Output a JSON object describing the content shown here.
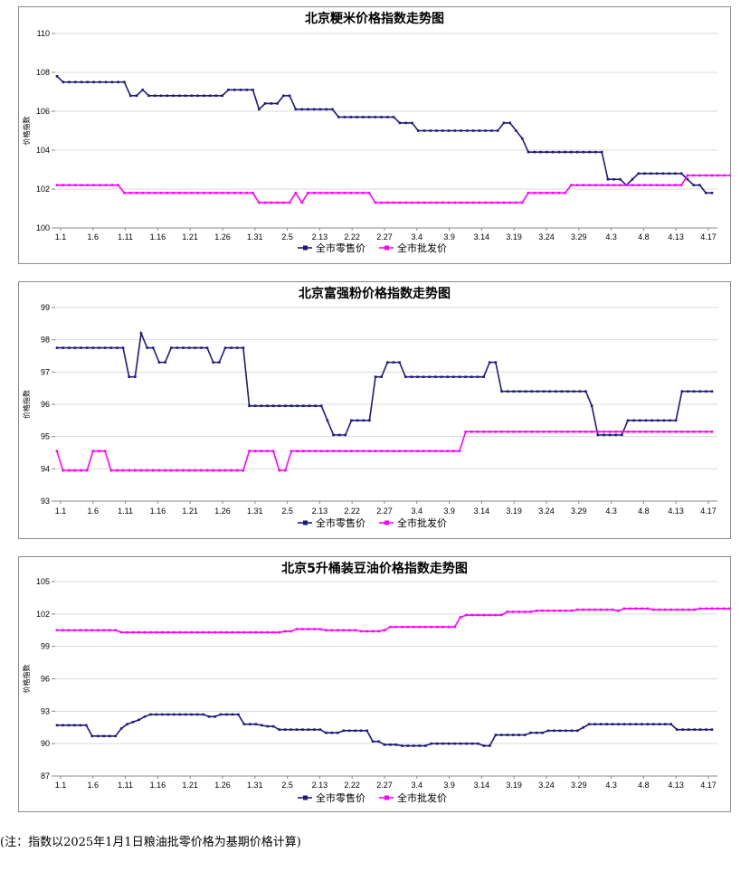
{
  "footnote": "(注：指数以2025年1月1日粮油批零价格为基期价格计算)",
  "chart_data": [
    {
      "type": "line",
      "title": "北京粳米价格指数走势图",
      "ylabel": "价格指数",
      "ylim": [
        100,
        110
      ],
      "yticks": [
        100,
        102,
        104,
        106,
        108,
        110
      ],
      "grid": true,
      "legend_position": "bottom",
      "x_tick_labels": [
        "1.1",
        "1.6",
        "1.11",
        "1.16",
        "1.21",
        "1.26",
        "1.31",
        "2.5",
        "2.13",
        "2.22",
        "2.27",
        "3.4",
        "3.9",
        "3.14",
        "3.19",
        "3.24",
        "3.29",
        "4.3",
        "4.8",
        "4.13",
        "4.17"
      ],
      "series": [
        {
          "name": "全市零售价",
          "color": "#1f1a7a",
          "values": [
            107.8,
            107.5,
            107.5,
            107.5,
            107.5,
            107.5,
            107.5,
            107.5,
            107.5,
            107.5,
            107.5,
            107.5,
            106.8,
            106.8,
            107.1,
            106.8,
            106.8,
            106.8,
            106.8,
            106.8,
            106.8,
            106.8,
            106.8,
            106.8,
            106.8,
            106.8,
            106.8,
            106.8,
            107.1,
            107.1,
            107.1,
            107.1,
            107.1,
            106.1,
            106.4,
            106.4,
            106.4,
            106.8,
            106.8,
            106.1,
            106.1,
            106.1,
            106.1,
            106.1,
            106.1,
            106.1,
            105.7,
            105.7,
            105.7,
            105.7,
            105.7,
            105.7,
            105.7,
            105.7,
            105.7,
            105.7,
            105.4,
            105.4,
            105.4,
            105.0,
            105.0,
            105.0,
            105.0,
            105.0,
            105.0,
            105.0,
            105.0,
            105.0,
            105.0,
            105.0,
            105.0,
            105.0,
            105.0,
            105.4,
            105.4,
            105.0,
            104.6,
            103.9,
            103.9,
            103.9,
            103.9,
            103.9,
            103.9,
            103.9,
            103.9,
            103.9,
            103.9,
            103.9,
            103.9,
            103.9,
            102.5,
            102.5,
            102.5,
            102.2,
            102.5,
            102.8,
            102.8,
            102.8,
            102.8,
            102.8,
            102.8,
            102.8,
            102.8,
            102.5,
            102.2,
            102.2,
            101.8,
            101.8
          ]
        },
        {
          "name": "全市批发价",
          "color": "#ff00ff",
          "values": [
            102.2,
            102.2,
            102.2,
            102.2,
            102.2,
            102.2,
            102.2,
            102.2,
            102.2,
            102.2,
            102.2,
            101.8,
            101.8,
            101.8,
            101.8,
            101.8,
            101.8,
            101.8,
            101.8,
            101.8,
            101.8,
            101.8,
            101.8,
            101.8,
            101.8,
            101.8,
            101.8,
            101.8,
            101.8,
            101.8,
            101.8,
            101.8,
            101.8,
            101.3,
            101.3,
            101.3,
            101.3,
            101.3,
            101.3,
            101.8,
            101.3,
            101.8,
            101.8,
            101.8,
            101.8,
            101.8,
            101.8,
            101.8,
            101.8,
            101.8,
            101.8,
            101.8,
            101.3,
            101.3,
            101.3,
            101.3,
            101.3,
            101.3,
            101.3,
            101.3,
            101.3,
            101.3,
            101.3,
            101.3,
            101.3,
            101.3,
            101.3,
            101.3,
            101.3,
            101.3,
            101.3,
            101.3,
            101.3,
            101.3,
            101.3,
            101.3,
            101.3,
            101.8,
            101.8,
            101.8,
            101.8,
            101.8,
            101.8,
            101.8,
            102.2,
            102.2,
            102.2,
            102.2,
            102.2,
            102.2,
            102.2,
            102.2,
            102.2,
            102.2,
            102.2,
            102.2,
            102.2,
            102.2,
            102.2,
            102.2,
            102.2,
            102.2,
            102.2,
            102.7,
            102.7,
            102.7,
            102.7,
            102.7,
            102.7,
            102.7,
            102.7
          ]
        }
      ]
    },
    {
      "type": "line",
      "title": "北京富强粉价格指数走势图",
      "ylabel": "价格指数",
      "ylim": [
        93,
        99
      ],
      "yticks": [
        93,
        94,
        95,
        96,
        97,
        98,
        99
      ],
      "grid": true,
      "legend_position": "bottom",
      "x_tick_labels": [
        "1.1",
        "1.6",
        "1.11",
        "1.16",
        "1.21",
        "1.26",
        "1.31",
        "2.5",
        "2.13",
        "2.22",
        "2.27",
        "3.4",
        "3.9",
        "3.14",
        "3.19",
        "3.24",
        "3.29",
        "4.3",
        "4.8",
        "4.13",
        "4.17"
      ],
      "series": [
        {
          "name": "全市零售价",
          "color": "#1f1a7a",
          "values": [
            97.75,
            97.75,
            97.75,
            97.75,
            97.75,
            97.75,
            97.75,
            97.75,
            97.75,
            97.75,
            97.75,
            97.75,
            96.85,
            96.85,
            98.2,
            97.75,
            97.75,
            97.3,
            97.3,
            97.75,
            97.75,
            97.75,
            97.75,
            97.75,
            97.75,
            97.75,
            97.3,
            97.3,
            97.75,
            97.75,
            97.75,
            97.75,
            95.95,
            95.95,
            95.95,
            95.95,
            95.95,
            95.95,
            95.95,
            95.95,
            95.95,
            95.95,
            95.95,
            95.95,
            95.95,
            95.5,
            95.05,
            95.05,
            95.05,
            95.5,
            95.5,
            95.5,
            95.5,
            96.85,
            96.85,
            97.3,
            97.3,
            97.3,
            96.85,
            96.85,
            96.85,
            96.85,
            96.85,
            96.85,
            96.85,
            96.85,
            96.85,
            96.85,
            96.85,
            96.85,
            96.85,
            96.85,
            97.3,
            97.3,
            96.4,
            96.4,
            96.4,
            96.4,
            96.4,
            96.4,
            96.4,
            96.4,
            96.4,
            96.4,
            96.4,
            96.4,
            96.4,
            96.4,
            96.4,
            95.95,
            95.05,
            95.05,
            95.05,
            95.05,
            95.05,
            95.5,
            95.5,
            95.5,
            95.5,
            95.5,
            95.5,
            95.5,
            95.5,
            95.5,
            96.4,
            96.4,
            96.4,
            96.4,
            96.4,
            96.4
          ]
        },
        {
          "name": "全市批发价",
          "color": "#ff00ff",
          "values": [
            94.55,
            93.95,
            93.95,
            93.95,
            93.95,
            93.95,
            94.55,
            94.55,
            94.55,
            93.95,
            93.95,
            93.95,
            93.95,
            93.95,
            93.95,
            93.95,
            93.95,
            93.95,
            93.95,
            93.95,
            93.95,
            93.95,
            93.95,
            93.95,
            93.95,
            93.95,
            93.95,
            93.95,
            93.95,
            93.95,
            93.95,
            93.95,
            94.55,
            94.55,
            94.55,
            94.55,
            94.55,
            93.95,
            93.95,
            94.55,
            94.55,
            94.55,
            94.55,
            94.55,
            94.55,
            94.55,
            94.55,
            94.55,
            94.55,
            94.55,
            94.55,
            94.55,
            94.55,
            94.55,
            94.55,
            94.55,
            94.55,
            94.55,
            94.55,
            94.55,
            94.55,
            94.55,
            94.55,
            94.55,
            94.55,
            94.55,
            94.55,
            94.55,
            95.15,
            95.15,
            95.15,
            95.15,
            95.15,
            95.15,
            95.15,
            95.15,
            95.15,
            95.15,
            95.15,
            95.15,
            95.15,
            95.15,
            95.15,
            95.15,
            95.15,
            95.15,
            95.15,
            95.15,
            95.15,
            95.15,
            95.15,
            95.15,
            95.15,
            95.15,
            95.15,
            95.15,
            95.15,
            95.15,
            95.15,
            95.15,
            95.15,
            95.15,
            95.15,
            95.15,
            95.15,
            95.15,
            95.15,
            95.15,
            95.15,
            95.15
          ]
        }
      ]
    },
    {
      "type": "line",
      "title": "北京5升桶装豆油价格指数走势图",
      "ylabel": "价格指数",
      "ylim": [
        87,
        105
      ],
      "yticks": [
        87,
        90,
        93,
        96,
        99,
        102,
        105
      ],
      "grid": true,
      "legend_position": "bottom",
      "x_tick_labels": [
        "1.1",
        "1.6",
        "1.11",
        "1.16",
        "1.21",
        "1.26",
        "1.31",
        "2.5",
        "2.13",
        "2.22",
        "2.27",
        "3.4",
        "3.9",
        "3.14",
        "3.19",
        "3.24",
        "3.29",
        "4.3",
        "4.8",
        "4.13",
        "4.17"
      ],
      "series": [
        {
          "name": "全市零售价",
          "color": "#1f1a7a",
          "values": [
            91.7,
            91.7,
            91.7,
            91.7,
            91.7,
            91.7,
            90.7,
            90.7,
            90.7,
            90.7,
            90.7,
            91.4,
            91.8,
            92.0,
            92.2,
            92.5,
            92.7,
            92.7,
            92.7,
            92.7,
            92.7,
            92.7,
            92.7,
            92.7,
            92.7,
            92.7,
            92.5,
            92.5,
            92.7,
            92.7,
            92.7,
            92.7,
            91.8,
            91.8,
            91.8,
            91.7,
            91.6,
            91.6,
            91.3,
            91.3,
            91.3,
            91.3,
            91.3,
            91.3,
            91.3,
            91.3,
            91.0,
            91.0,
            91.0,
            91.2,
            91.2,
            91.2,
            91.2,
            91.2,
            90.2,
            90.2,
            89.9,
            89.9,
            89.9,
            89.8,
            89.8,
            89.8,
            89.8,
            89.8,
            90.0,
            90.0,
            90.0,
            90.0,
            90.0,
            90.0,
            90.0,
            90.0,
            90.0,
            89.8,
            89.8,
            90.8,
            90.8,
            90.8,
            90.8,
            90.8,
            90.8,
            91.0,
            91.0,
            91.0,
            91.2,
            91.2,
            91.2,
            91.2,
            91.2,
            91.2,
            91.5,
            91.8,
            91.8,
            91.8,
            91.8,
            91.8,
            91.8,
            91.8,
            91.8,
            91.8,
            91.8,
            91.8,
            91.8,
            91.8,
            91.8,
            91.8,
            91.3,
            91.3,
            91.3,
            91.3,
            91.3,
            91.3,
            91.3
          ]
        },
        {
          "name": "全市批发价",
          "color": "#ff00ff",
          "values": [
            100.5,
            100.5,
            100.5,
            100.5,
            100.5,
            100.5,
            100.5,
            100.5,
            100.5,
            100.5,
            100.5,
            100.3,
            100.3,
            100.3,
            100.3,
            100.3,
            100.3,
            100.3,
            100.3,
            100.3,
            100.3,
            100.3,
            100.3,
            100.3,
            100.3,
            100.3,
            100.3,
            100.3,
            100.3,
            100.3,
            100.3,
            100.3,
            100.3,
            100.3,
            100.3,
            100.3,
            100.3,
            100.3,
            100.3,
            100.4,
            100.4,
            100.6,
            100.6,
            100.6,
            100.6,
            100.6,
            100.5,
            100.5,
            100.5,
            100.5,
            100.5,
            100.5,
            100.4,
            100.4,
            100.4,
            100.4,
            100.5,
            100.8,
            100.8,
            100.8,
            100.8,
            100.8,
            100.8,
            100.8,
            100.8,
            100.8,
            100.8,
            100.8,
            100.8,
            101.7,
            101.9,
            101.9,
            101.9,
            101.9,
            101.9,
            101.9,
            101.9,
            102.2,
            102.2,
            102.2,
            102.2,
            102.2,
            102.3,
            102.3,
            102.3,
            102.3,
            102.3,
            102.3,
            102.3,
            102.4,
            102.4,
            102.4,
            102.4,
            102.4,
            102.4,
            102.4,
            102.3,
            102.5,
            102.5,
            102.5,
            102.5,
            102.5,
            102.4,
            102.4,
            102.4,
            102.4,
            102.4,
            102.4,
            102.4,
            102.4,
            102.5,
            102.5,
            102.5,
            102.5,
            102.5,
            102.5
          ]
        }
      ]
    }
  ]
}
